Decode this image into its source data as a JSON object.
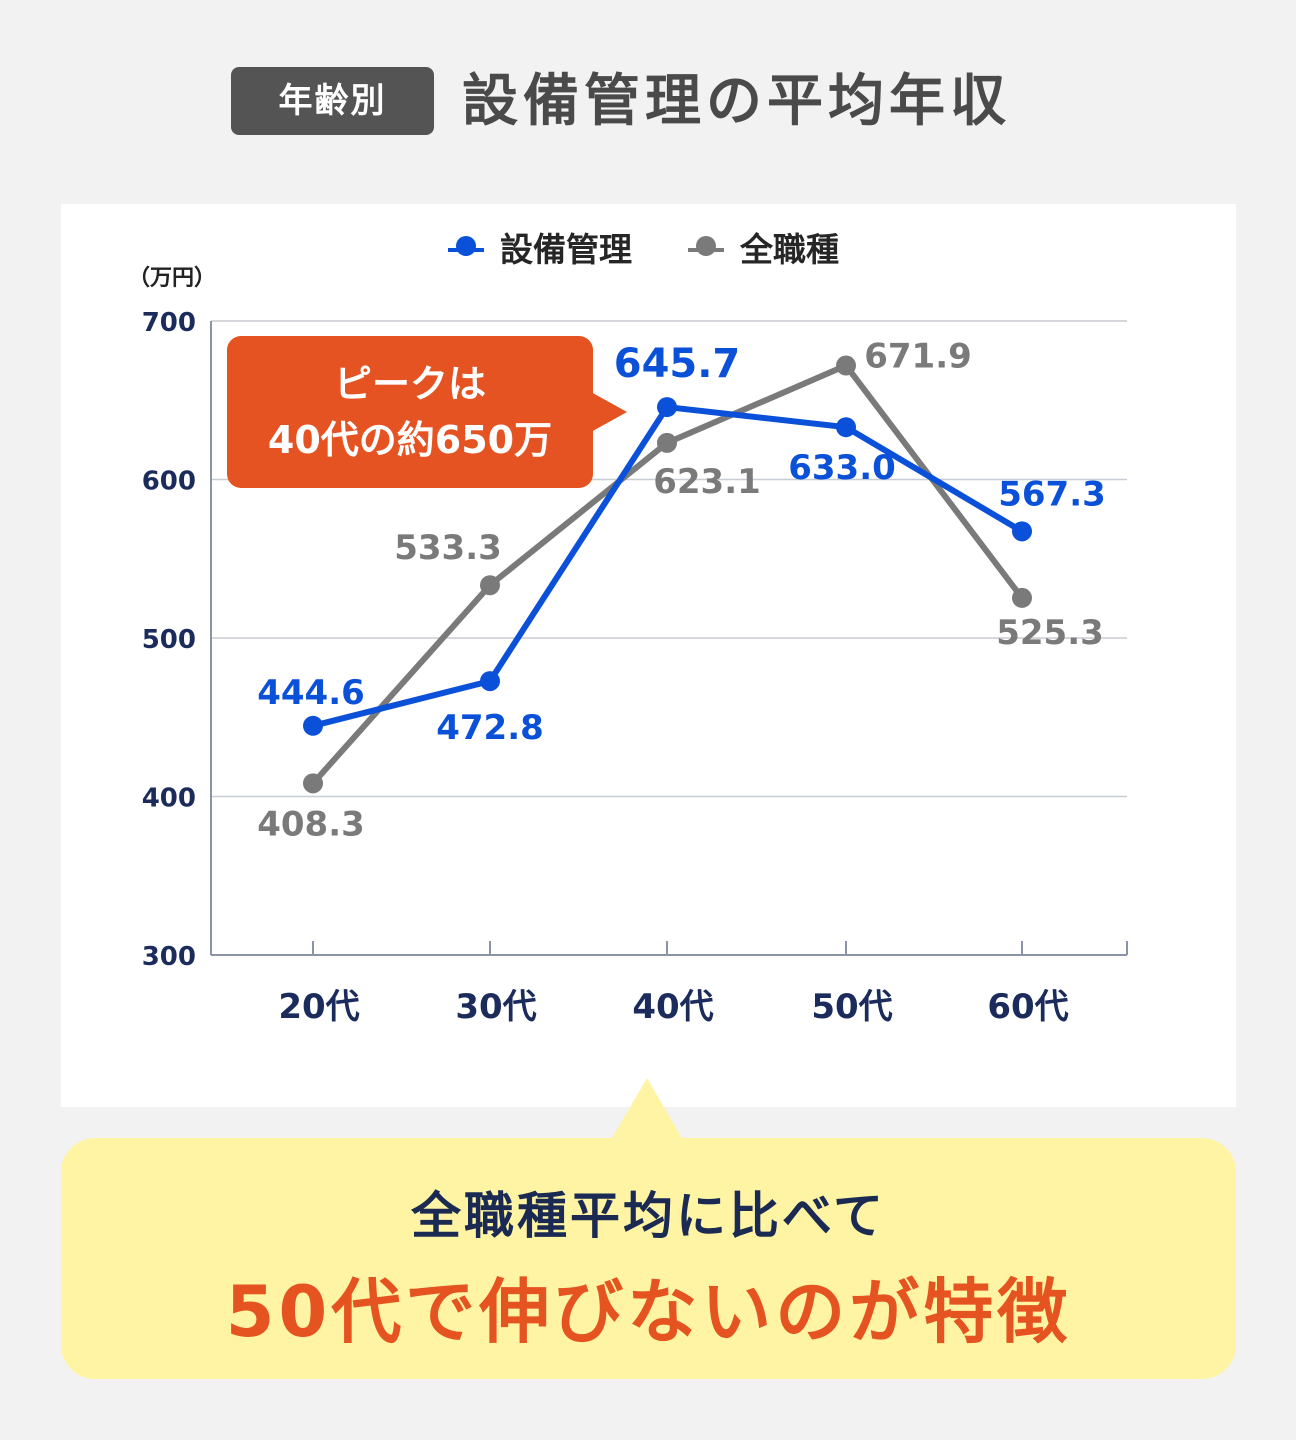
{
  "header": {
    "badge": "年齢別",
    "title": "設備管理の平均年収"
  },
  "callout": {
    "line1": "ピークは",
    "line2": "40代の約650万"
  },
  "note": {
    "line1": "全職種平均に比べて",
    "line2": "50代で伸びないのが特徴"
  },
  "colors": {
    "setsubi": "#0a50d8",
    "all": "#7a7a7a",
    "axis": "#1b2c5c",
    "grid": "#c8ccd4",
    "callout_bg": "#e65322",
    "note_bg": "#fff4a3"
  },
  "chart_data": {
    "type": "line",
    "title": "",
    "ylabel": "（万円）",
    "xlabel": "",
    "categories": [
      "20代",
      "30代",
      "40代",
      "50代",
      "60代"
    ],
    "ylim": [
      300,
      700
    ],
    "yticks": [
      300,
      400,
      500,
      600,
      700
    ],
    "grid": true,
    "legend_position": "top",
    "series": [
      {
        "name": "設備管理",
        "color": "#0a50d8",
        "values": [
          444.6,
          472.8,
          645.7,
          633.0,
          567.3
        ],
        "labels": [
          "444.6",
          "472.8",
          "645.7",
          "633.0",
          "567.3"
        ]
      },
      {
        "name": "全職種",
        "color": "#7a7a7a",
        "values": [
          408.3,
          533.3,
          623.1,
          671.9,
          525.3
        ],
        "labels": [
          "408.3",
          "533.3",
          "623.1",
          "671.9",
          "525.3"
        ]
      }
    ]
  }
}
